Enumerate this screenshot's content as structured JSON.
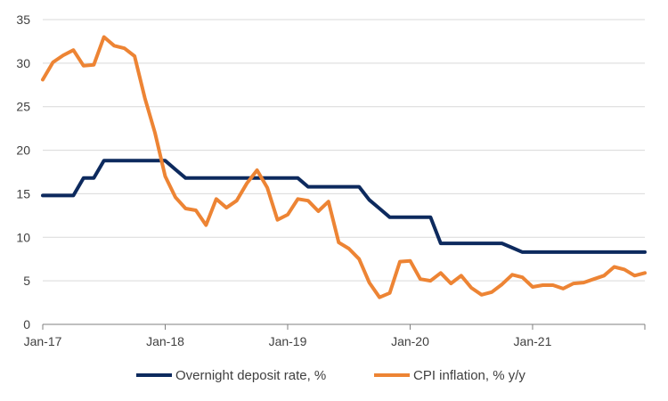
{
  "chart_data": {
    "type": "line",
    "title": "",
    "xlabel": "",
    "ylabel": "",
    "ylim": [
      0,
      35
    ],
    "y_ticks": [
      0,
      5,
      10,
      15,
      20,
      25,
      30,
      35
    ],
    "y_tick_labels": [
      "0",
      "5",
      "10",
      "15",
      "20",
      "25",
      "30",
      "35"
    ],
    "x_tick_labels": [
      "Jan-17",
      "Jan-18",
      "Jan-19",
      "Jan-20",
      "Jan-21"
    ],
    "x_tick_dates": [
      "2017-01",
      "2018-01",
      "2019-01",
      "2020-01",
      "2021-01"
    ],
    "x": [
      "2017-01",
      "2017-02",
      "2017-03",
      "2017-04",
      "2017-05",
      "2017-06",
      "2017-07",
      "2017-08",
      "2017-09",
      "2017-10",
      "2017-11",
      "2017-12",
      "2018-01",
      "2018-02",
      "2018-03",
      "2018-04",
      "2018-05",
      "2018-06",
      "2018-07",
      "2018-08",
      "2018-09",
      "2018-10",
      "2018-11",
      "2018-12",
      "2019-01",
      "2019-02",
      "2019-03",
      "2019-04",
      "2019-05",
      "2019-06",
      "2019-07",
      "2019-08",
      "2019-09",
      "2019-10",
      "2019-11",
      "2019-12",
      "2020-01",
      "2020-02",
      "2020-03",
      "2020-04",
      "2020-05",
      "2020-06",
      "2020-07",
      "2020-08",
      "2020-09",
      "2020-10",
      "2020-11",
      "2020-12",
      "2021-01",
      "2021-02",
      "2021-03",
      "2021-04",
      "2021-05",
      "2021-06",
      "2021-07",
      "2021-08",
      "2021-09",
      "2021-10",
      "2021-11",
      "2021-12"
    ],
    "grid": true,
    "legend_position": "bottom",
    "series": [
      {
        "name": "Overnight deposit rate, %",
        "color": "#0d2a5e",
        "values": [
          14.8,
          14.8,
          14.8,
          14.8,
          16.8,
          16.8,
          18.8,
          18.8,
          18.8,
          18.8,
          18.8,
          18.8,
          18.8,
          17.8,
          16.8,
          16.8,
          16.8,
          16.8,
          16.8,
          16.8,
          16.8,
          16.8,
          16.8,
          16.8,
          16.8,
          16.8,
          15.8,
          15.8,
          15.8,
          15.8,
          15.8,
          15.8,
          14.3,
          13.3,
          12.3,
          12.3,
          12.3,
          12.3,
          12.3,
          9.3,
          9.3,
          9.3,
          9.3,
          9.3,
          9.3,
          9.3,
          8.8,
          8.3,
          8.3,
          8.3,
          8.3,
          8.3,
          8.3,
          8.3,
          8.3,
          8.3,
          8.3,
          8.3,
          8.3,
          8.3
        ]
      },
      {
        "name": "CPI inflation, % y/y",
        "color": "#ed8434",
        "values": [
          28.1,
          30.1,
          30.9,
          31.5,
          29.7,
          29.8,
          33.0,
          32.0,
          31.7,
          30.8,
          26.0,
          22.0,
          17.0,
          14.6,
          13.3,
          13.1,
          11.4,
          14.4,
          13.4,
          14.2,
          16.2,
          17.7,
          15.7,
          12.0,
          12.6,
          14.4,
          14.2,
          13.0,
          14.1,
          9.4,
          8.7,
          7.5,
          4.8,
          3.1,
          3.6,
          7.2,
          7.3,
          5.2,
          5.0,
          5.9,
          4.7,
          5.6,
          4.2,
          3.4,
          3.7,
          4.6,
          5.7,
          5.4,
          4.3,
          4.5,
          4.5,
          4.1,
          4.7,
          4.8,
          5.2,
          5.6,
          6.6,
          6.3,
          5.6,
          5.9
        ]
      }
    ]
  }
}
